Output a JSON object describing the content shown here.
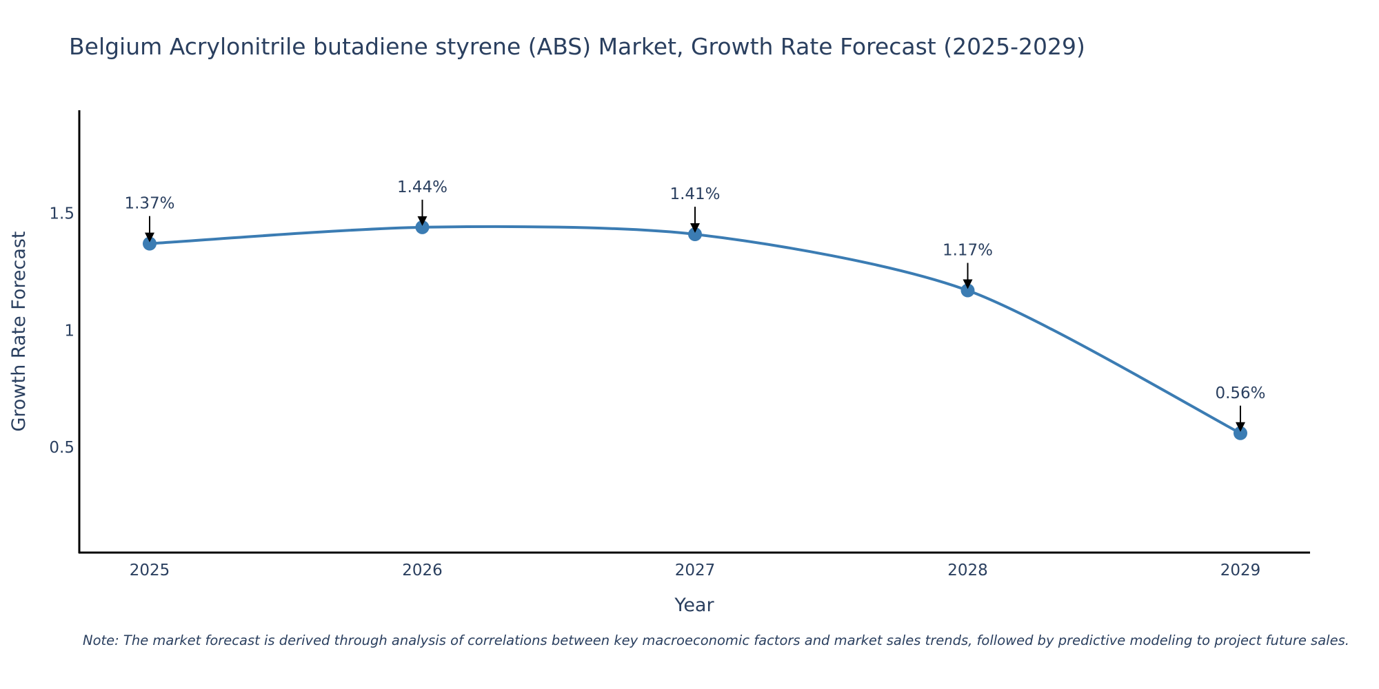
{
  "chart_data": {
    "type": "line",
    "title": "Belgium Acrylonitrile butadiene styrene (ABS) Market, Growth Rate Forecast (2025-2029)",
    "xlabel": "Year",
    "ylabel": "Growth Rate Forecast",
    "categories": [
      "2025",
      "2026",
      "2027",
      "2028",
      "2029"
    ],
    "series": [
      {
        "name": "Growth Rate Forecast",
        "values": [
          1.37,
          1.44,
          1.41,
          1.17,
          0.56
        ]
      }
    ],
    "data_labels": [
      "1.37%",
      "1.44%",
      "1.41%",
      "1.17%",
      "0.56%"
    ],
    "yticks": [
      0.5,
      1,
      1.5
    ],
    "ytick_labels": [
      "0.5",
      "1",
      "1.5"
    ],
    "ylim": [
      0.05,
      1.94
    ],
    "grid": false,
    "legend": "none",
    "line_color": "#3b7cb3",
    "marker_color": "#3b7cb3",
    "arrow_color": "#000000",
    "note": "Note: The market forecast is derived through analysis of correlations between key macroeconomic factors and market sales trends, followed by predictive modeling to project future sales."
  }
}
